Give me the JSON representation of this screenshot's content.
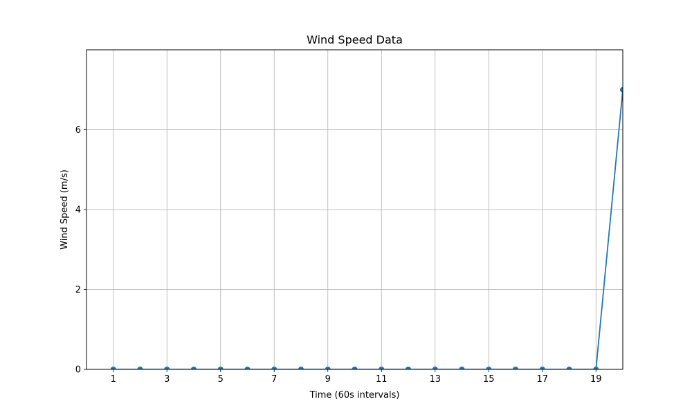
{
  "chart_data": {
    "type": "line",
    "title": "Wind Speed Data",
    "xlabel": "Time (60s intervals)",
    "ylabel": "Wind Speed (m/s)",
    "x": [
      1,
      2,
      3,
      4,
      5,
      6,
      7,
      8,
      9,
      10,
      11,
      12,
      13,
      14,
      15,
      16,
      17,
      18,
      19,
      20
    ],
    "series": [
      {
        "values": [
          0,
          0,
          0,
          0,
          0,
          0,
          0,
          0,
          0,
          0,
          0,
          0,
          0,
          0,
          0,
          0,
          0,
          0,
          0,
          7
        ],
        "color": "#1f77b4",
        "marker": "circle"
      }
    ],
    "xlim": [
      0,
      20
    ],
    "ylim": [
      0,
      8
    ],
    "xticks": [
      1,
      3,
      5,
      7,
      9,
      11,
      13,
      15,
      17,
      19
    ],
    "yticks": [
      0,
      2,
      4,
      6
    ],
    "grid": true,
    "legend": "none"
  }
}
